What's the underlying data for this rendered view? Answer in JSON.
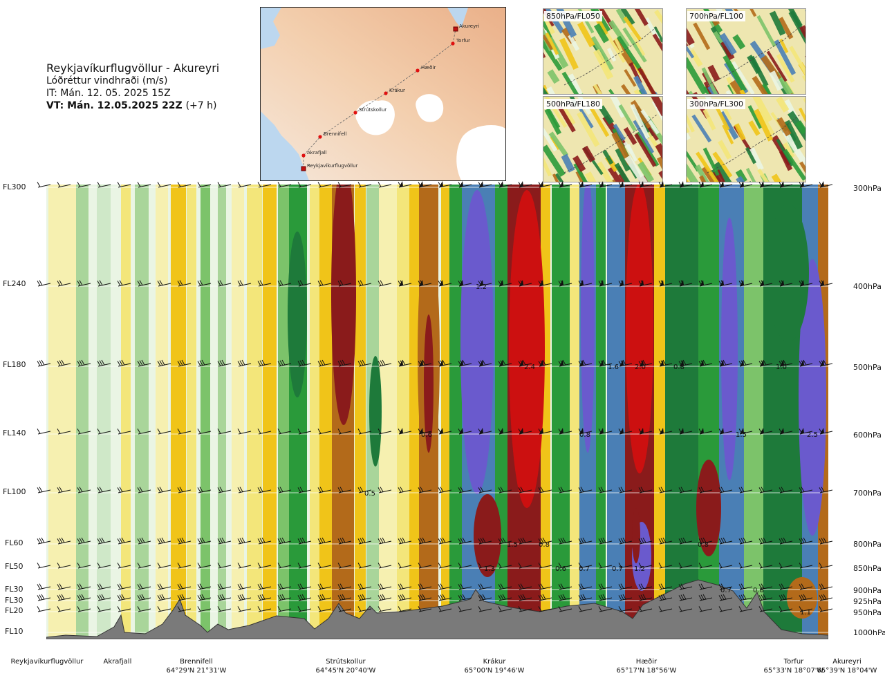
{
  "header": {
    "title": "Reykjavíkurflugvöllur - Akureyri",
    "subtitle": "Lóðréttur vindhraði (m/s)",
    "it": "IT: Mán. 12. 05. 2025 15Z",
    "vt": "VT: Mán. 12.05.2025 22Z",
    "vt_offset": "(+7 h)"
  },
  "map": {
    "points": [
      "Akureyri",
      "Torfur",
      "Hæðir",
      "Krákur",
      "Strútskollur",
      "Brennifell",
      "Akrafjall",
      "Reykjavíkurflugvöllur"
    ]
  },
  "thumbnails": [
    "850hPa/FL050",
    "700hPa/FL100",
    "500hPa/FL180",
    "300hPa/FL300"
  ],
  "levels": {
    "flight_levels": [
      "FL300",
      "FL240",
      "FL180",
      "FL140",
      "FL100",
      "FL60",
      "FL50",
      "FL30",
      "FL30",
      "FL20",
      "FL10"
    ],
    "pressure_levels": [
      "300hPa",
      "400hPa",
      "500hPa",
      "600hPa",
      "700hPa",
      "800hPa",
      "850hPa",
      "900hPa",
      "925hPa",
      "950hPa",
      "1000hPa"
    ]
  },
  "stations": [
    {
      "name": "Reykjavíkurflugvöllur",
      "coord": ""
    },
    {
      "name": "Akrafjall",
      "coord": ""
    },
    {
      "name": "Brennifell",
      "coord": "64°29'N 21°31'W"
    },
    {
      "name": "Strútskollur",
      "coord": "64°45'N 20°40'W"
    },
    {
      "name": "Krákur",
      "coord": "65°00'N 19°46'W"
    },
    {
      "name": "Hæðir",
      "coord": "65°17'N 18°56'W"
    },
    {
      "name": "Torfur",
      "coord": "65°33'N 18°07'W"
    },
    {
      "name": "Akureyri",
      "coord": "65°39'N 18°04'W"
    }
  ],
  "colors": {
    "strong_down": "#6a5acd",
    "down_3": "#4a7fb5",
    "down_2": "#1e7a3a",
    "down_1": "#2a9a3a",
    "down_05": "#7cc36a",
    "down_02": "#a9d59a",
    "down_01": "#cfe8c8",
    "neutral": "#eaf5e4",
    "up_01": "#f6f0b0",
    "up_02": "#f3e67a",
    "up_05": "#f0c419",
    "up_1": "#d39b1a",
    "up_2": "#b36a1a",
    "up_3": "#8a1b1b",
    "strong_up": "#cc1010",
    "terrain": "#7a7a7a"
  },
  "chart_data": {
    "type": "heatmap",
    "title": "Lóðréttur vindhraði (m/s)",
    "xlabel": "",
    "ylabel": "",
    "x_stations": [
      "Reykjavíkurflugvöllur",
      "Akrafjall",
      "Brennifell",
      "Strútskollur",
      "Krákur",
      "Hæðir",
      "Torfur",
      "Akureyri"
    ],
    "y_levels_hpa": [
      300,
      400,
      500,
      600,
      700,
      800,
      850,
      900,
      925,
      950,
      1000
    ],
    "annotations": [
      {
        "level_hpa": 400,
        "text": "1.2"
      },
      {
        "level_hpa": 500,
        "text": "2.4"
      },
      {
        "level_hpa": 500,
        "text": "1.6"
      },
      {
        "level_hpa": 500,
        "text": "2.0"
      },
      {
        "level_hpa": 500,
        "text": "0.8"
      },
      {
        "level_hpa": 500,
        "text": "1.0"
      },
      {
        "level_hpa": 600,
        "text": "0.6"
      },
      {
        "level_hpa": 600,
        "text": "0.8"
      },
      {
        "level_hpa": 600,
        "text": "1.5"
      },
      {
        "level_hpa": 600,
        "text": "2.5"
      },
      {
        "level_hpa": 700,
        "text": "0.5"
      },
      {
        "level_hpa": 800,
        "text": "1.5"
      },
      {
        "level_hpa": 800,
        "text": "0.8"
      },
      {
        "level_hpa": 800,
        "text": "0.8"
      },
      {
        "level_hpa": 850,
        "text": "1.3"
      },
      {
        "level_hpa": 850,
        "text": "0.6"
      },
      {
        "level_hpa": 850,
        "text": "0.7"
      },
      {
        "level_hpa": 850,
        "text": "0.7"
      },
      {
        "level_hpa": 850,
        "text": "1.2"
      },
      {
        "level_hpa": 900,
        "text": "0.7"
      },
      {
        "level_hpa": 900,
        "text": "0.8"
      },
      {
        "level_hpa": 950,
        "text": "1.1"
      }
    ]
  }
}
